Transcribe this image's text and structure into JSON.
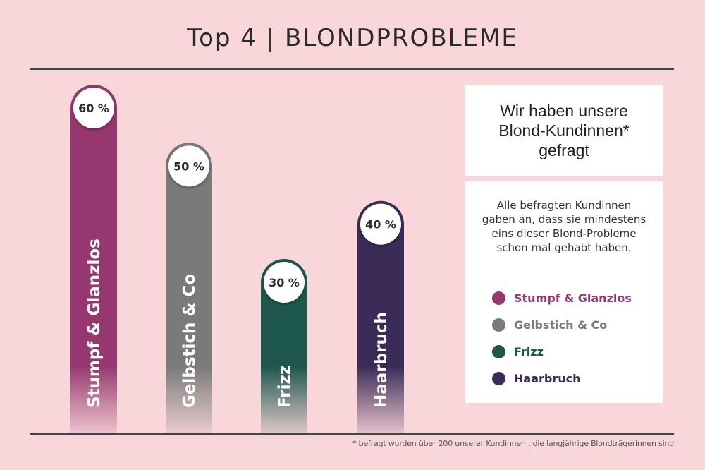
{
  "title": "Top 4  |  BLONDPROBLEME",
  "info": {
    "heading": "Wir haben unsere Blond-Kundinnen* gefragt",
    "description": "Alle befragten Kundinnen gaben an, dass sie mindestens eins dieser Blond-Probleme schon mal gehabt haben."
  },
  "footnote": "* befragt wurden über 200 unserer Kundinnen , die langjährige Blondträgerinnen sind",
  "colors": {
    "background": "#f9d6d9",
    "stumpf": "#96386f",
    "gelbstich": "#7a7a7a",
    "frizz": "#1e574d",
    "haarbruch": "#3b2c57"
  },
  "chart_data": {
    "type": "bar",
    "title": "Top 4  |  BLONDPROBLEME",
    "categories": [
      "Stumpf & Glanzlos",
      "Gelbstich & Co",
      "Frizz",
      "Haarbruch"
    ],
    "values": [
      60,
      50,
      30,
      40
    ],
    "value_labels": [
      "60 %",
      "50 %",
      "30 %",
      "40 %"
    ],
    "unit": "%",
    "ylim": [
      0,
      60
    ],
    "xlabel": "",
    "ylabel": "",
    "grid": false,
    "legend": {
      "position": "right",
      "entries": [
        {
          "label": "Stumpf & Glanzlos",
          "color": "#96386f"
        },
        {
          "label": "Gelbstich & Co",
          "color": "#7a7a7a"
        },
        {
          "label": "Frizz",
          "color": "#1e574d"
        },
        {
          "label": "Haarbruch",
          "color": "#3b2c57"
        }
      ]
    }
  }
}
